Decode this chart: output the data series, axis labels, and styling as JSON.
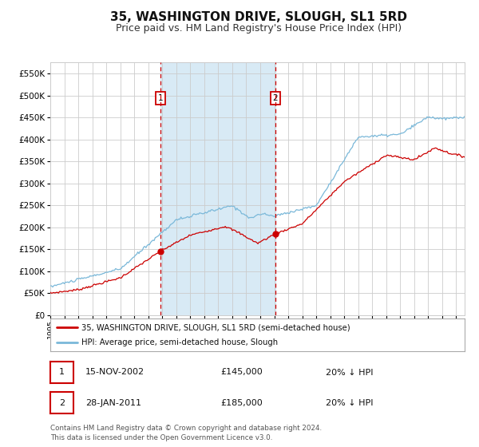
{
  "title": "35, WASHINGTON DRIVE, SLOUGH, SL1 5RD",
  "subtitle": "Price paid vs. HM Land Registry's House Price Index (HPI)",
  "legend_line1": "35, WASHINGTON DRIVE, SLOUGH, SL1 5RD (semi-detached house)",
  "legend_line2": "HPI: Average price, semi-detached house, Slough",
  "annotation1_label": "1",
  "annotation1_date": "15-NOV-2002",
  "annotation1_price": 145000,
  "annotation1_price_str": "£145,000",
  "annotation1_pct": "20% ↓ HPI",
  "annotation2_label": "2",
  "annotation2_date": "28-JAN-2011",
  "annotation2_price": 185000,
  "annotation2_price_str": "£185,000",
  "annotation2_pct": "20% ↓ HPI",
  "footer": "Contains HM Land Registry data © Crown copyright and database right 2024.\nThis data is licensed under the Open Government Licence v3.0.",
  "hpi_color": "#7ab8d9",
  "price_color": "#cc0000",
  "marker_color": "#cc0000",
  "vline_color": "#cc0000",
  "shade_color": "#d8eaf5",
  "bg_color": "#ffffff",
  "grid_color": "#cccccc",
  "ylim": [
    0,
    575000
  ],
  "yticks": [
    0,
    50000,
    100000,
    150000,
    200000,
    250000,
    300000,
    350000,
    400000,
    450000,
    500000,
    550000
  ],
  "title_fontsize": 11,
  "subtitle_fontsize": 9,
  "year_start": 1995,
  "year_end": 2024,
  "annotation1_year": 2002.88,
  "annotation2_year": 2011.07
}
